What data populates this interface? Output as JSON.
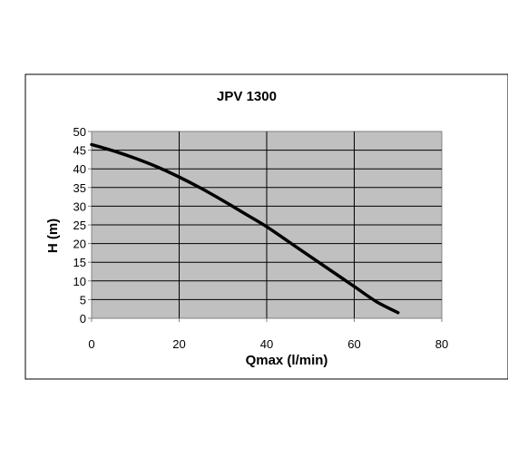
{
  "chart_data": {
    "type": "line",
    "title": "JPV 1300",
    "xlabel": "Qmax (l/min)",
    "ylabel": "H (m)",
    "xlim": [
      0,
      80
    ],
    "ylim": [
      0,
      50
    ],
    "xticks": [
      0,
      20,
      40,
      60,
      80
    ],
    "yticks": [
      0,
      5,
      10,
      15,
      20,
      25,
      30,
      35,
      40,
      45,
      50
    ],
    "grid": true,
    "plot_background": "#c0c0c0",
    "line_color": "#000000",
    "series": [
      {
        "x": [
          0,
          5,
          10,
          15,
          20,
          25,
          30,
          35,
          40,
          45,
          50,
          55,
          60,
          65,
          70
        ],
        "values": [
          46.5,
          44.8,
          42.8,
          40.5,
          37.8,
          34.8,
          31.5,
          28,
          24.5,
          20.5,
          16.5,
          12.5,
          8.5,
          4.5,
          1.5
        ]
      }
    ]
  }
}
